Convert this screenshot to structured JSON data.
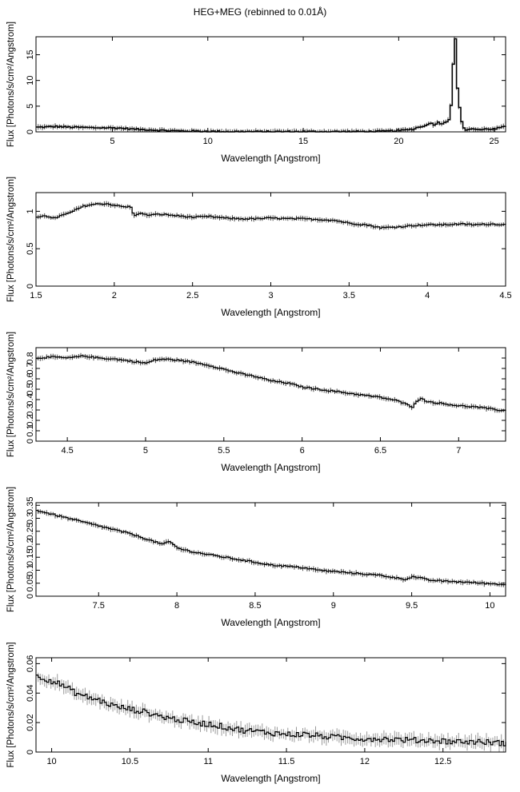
{
  "title": "HEG+MEG (rebinned to 0.01Å)",
  "chart_data": [
    {
      "type": "line",
      "xlabel": "Wavelength [Angstrom]",
      "ylabel": "Flux [Photons/s/cm²/Angstrom]",
      "xlim": [
        1.0,
        25.6
      ],
      "ylim": [
        0,
        18.5
      ],
      "xticks": [
        5,
        10,
        15,
        20,
        25
      ],
      "xtick_labels": [
        "5",
        "10",
        "15",
        "20",
        "25"
      ],
      "yticks": [
        0,
        5,
        10,
        15
      ],
      "ytick_labels": [
        "0",
        "5",
        "10",
        "15"
      ],
      "grid": false,
      "series": [
        {
          "x": [
            1.0,
            1.5,
            2.0,
            2.5,
            3.0,
            3.5,
            4.0,
            4.5,
            5.0,
            5.5,
            6.0,
            6.5,
            7.0,
            7.5,
            8.0,
            9.0,
            10.0,
            11.0,
            12.0,
            13.0,
            14.0,
            15.0,
            16.0,
            17.0,
            18.0,
            19.0,
            19.6,
            20.0,
            20.4,
            20.8,
            21.0,
            21.2,
            21.4,
            21.6,
            21.8,
            22.0,
            22.2,
            22.4,
            22.6,
            22.75,
            22.85,
            22.95,
            23.05,
            23.15,
            23.3,
            23.45,
            23.6,
            23.75,
            24.0,
            24.3,
            24.6,
            25.0,
            25.3,
            25.6
          ],
          "values": [
            0.9,
            0.95,
            1.05,
            0.95,
            0.9,
            0.85,
            0.8,
            0.8,
            0.78,
            0.7,
            0.55,
            0.45,
            0.38,
            0.3,
            0.22,
            0.15,
            0.1,
            0.07,
            0.05,
            0.05,
            0.05,
            0.05,
            0.05,
            0.05,
            0.06,
            0.1,
            0.2,
            0.25,
            0.4,
            0.6,
            1.0,
            0.9,
            1.4,
            1.8,
            1.3,
            1.9,
            1.6,
            1.8,
            2.5,
            7.0,
            18.4,
            18.0,
            6.0,
            4.5,
            0.8,
            0.5,
            0.3,
            0.7,
            0.5,
            0.4,
            0.6,
            0.5,
            0.9,
            1.0
          ]
        }
      ]
    },
    {
      "type": "line",
      "xlabel": "Wavelength [Angstrom]",
      "ylabel": "Flux [Photons/s/cm²/Angstrom]",
      "xlim": [
        1.5,
        4.5
      ],
      "ylim": [
        0,
        1.25
      ],
      "xticks": [
        1.5,
        2,
        2.5,
        3,
        3.5,
        4,
        4.5
      ],
      "xtick_labels": [
        "1.5",
        "2",
        "2.5",
        "3",
        "3.5",
        "4",
        "4.5"
      ],
      "yticks": [
        0,
        0.5,
        1
      ],
      "ytick_labels": [
        "0",
        "0.5",
        "1"
      ],
      "grid": false,
      "series": [
        {
          "x": [
            1.5,
            1.55,
            1.6,
            1.65,
            1.7,
            1.75,
            1.8,
            1.85,
            1.9,
            1.95,
            2.0,
            2.05,
            2.1,
            2.12,
            2.15,
            2.2,
            2.3,
            2.4,
            2.5,
            2.6,
            2.7,
            2.8,
            2.9,
            3.0,
            3.1,
            3.2,
            3.3,
            3.4,
            3.5,
            3.6,
            3.7,
            3.8,
            3.9,
            4.0,
            4.1,
            4.2,
            4.3,
            4.4,
            4.5
          ],
          "values": [
            0.92,
            0.95,
            0.9,
            0.94,
            0.97,
            1.02,
            1.07,
            1.09,
            1.1,
            1.1,
            1.08,
            1.06,
            1.06,
            0.93,
            0.98,
            0.95,
            0.96,
            0.94,
            0.92,
            0.93,
            0.91,
            0.9,
            0.9,
            0.91,
            0.9,
            0.9,
            0.89,
            0.88,
            0.84,
            0.82,
            0.78,
            0.79,
            0.81,
            0.82,
            0.82,
            0.83,
            0.82,
            0.83,
            0.82
          ]
        }
      ]
    },
    {
      "type": "line",
      "xlabel": "Wavelength [Angstrom]",
      "ylabel": "Flux [Photons/s/cm²/Angstrom]",
      "xlim": [
        4.3,
        7.3
      ],
      "ylim": [
        0,
        0.9
      ],
      "xticks": [
        4.5,
        5,
        5.5,
        6,
        6.5,
        7
      ],
      "xtick_labels": [
        "4.5",
        "5",
        "5.5",
        "6",
        "6.5",
        "7"
      ],
      "yticks": [
        0,
        0.1,
        0.2,
        0.3,
        0.4,
        0.5,
        0.6,
        0.7,
        0.8
      ],
      "ytick_labels": [
        "0",
        "0.1",
        "0.2",
        "0.3",
        "0.4",
        "0.5",
        "0.6",
        "0.7",
        "0.8"
      ],
      "grid": false,
      "series": [
        {
          "x": [
            4.3,
            4.4,
            4.5,
            4.6,
            4.7,
            4.8,
            4.9,
            5.0,
            5.05,
            5.1,
            5.2,
            5.3,
            5.4,
            5.5,
            5.6,
            5.7,
            5.8,
            5.9,
            6.0,
            6.1,
            6.2,
            6.3,
            6.4,
            6.5,
            6.6,
            6.65,
            6.7,
            6.72,
            6.75,
            6.8,
            6.9,
            7.0,
            7.1,
            7.2,
            7.3
          ],
          "values": [
            0.8,
            0.81,
            0.8,
            0.82,
            0.8,
            0.79,
            0.77,
            0.75,
            0.78,
            0.79,
            0.78,
            0.76,
            0.73,
            0.69,
            0.65,
            0.62,
            0.58,
            0.56,
            0.52,
            0.5,
            0.48,
            0.46,
            0.44,
            0.42,
            0.39,
            0.36,
            0.33,
            0.38,
            0.41,
            0.38,
            0.36,
            0.34,
            0.33,
            0.31,
            0.29
          ]
        }
      ]
    },
    {
      "type": "line",
      "xlabel": "Wavelength [Angstrom]",
      "ylabel": "Flux [Photons/s/cm²/Angstrom]",
      "xlim": [
        7.1,
        10.1
      ],
      "ylim": [
        0,
        0.36
      ],
      "xticks": [
        7.5,
        8,
        8.5,
        9,
        9.5,
        10
      ],
      "xtick_labels": [
        "7.5",
        "8",
        "8.5",
        "9",
        "9.5",
        "10"
      ],
      "yticks": [
        0,
        0.05,
        0.1,
        0.15,
        0.2,
        0.25,
        0.3,
        0.35
      ],
      "ytick_labels": [
        "0",
        "0.05",
        "0.1",
        "0.15",
        "0.2",
        "0.25",
        "0.3",
        "0.35"
      ],
      "grid": false,
      "series": [
        {
          "x": [
            7.1,
            7.2,
            7.3,
            7.4,
            7.5,
            7.6,
            7.7,
            7.8,
            7.9,
            7.95,
            8.0,
            8.1,
            8.2,
            8.3,
            8.4,
            8.5,
            8.6,
            8.7,
            8.8,
            8.9,
            9.0,
            9.1,
            9.2,
            9.3,
            9.4,
            9.45,
            9.5,
            9.55,
            9.6,
            9.7,
            9.8,
            9.9,
            10.0,
            10.1
          ],
          "values": [
            0.33,
            0.315,
            0.3,
            0.285,
            0.27,
            0.255,
            0.24,
            0.22,
            0.2,
            0.21,
            0.185,
            0.17,
            0.16,
            0.15,
            0.14,
            0.13,
            0.12,
            0.115,
            0.11,
            0.1,
            0.095,
            0.09,
            0.085,
            0.08,
            0.07,
            0.065,
            0.075,
            0.07,
            0.062,
            0.058,
            0.055,
            0.052,
            0.048,
            0.045
          ]
        }
      ]
    },
    {
      "type": "line",
      "xlabel": "Wavelength [Angstrom]",
      "ylabel": "Flux [Photons/s/cm²/Angstrom]",
      "xlim": [
        9.9,
        12.9
      ],
      "ylim": [
        0,
        0.064
      ],
      "xticks": [
        10,
        10.5,
        11,
        11.5,
        12,
        12.5
      ],
      "xtick_labels": [
        "10",
        "10.5",
        "11",
        "11.5",
        "12",
        "12.5"
      ],
      "yticks": [
        0,
        0.02,
        0.04,
        0.06
      ],
      "ytick_labels": [
        "0",
        "0.02",
        "0.04",
        "0.06"
      ],
      "grid": false,
      "series": [
        {
          "x": [
            9.9,
            9.95,
            10.0,
            10.05,
            10.1,
            10.15,
            10.2,
            10.3,
            10.4,
            10.5,
            10.6,
            10.7,
            10.8,
            10.9,
            11.0,
            11.1,
            11.2,
            11.3,
            11.4,
            11.5,
            11.6,
            11.7,
            11.8,
            11.9,
            12.0,
            12.1,
            12.2,
            12.3,
            12.4,
            12.5,
            12.6,
            12.7,
            12.8,
            12.9
          ],
          "values": [
            0.052,
            0.05,
            0.048,
            0.046,
            0.043,
            0.04,
            0.038,
            0.035,
            0.031,
            0.029,
            0.027,
            0.024,
            0.022,
            0.02,
            0.019,
            0.017,
            0.015,
            0.014,
            0.013,
            0.012,
            0.012,
            0.011,
            0.01,
            0.0095,
            0.009,
            0.009,
            0.0085,
            0.008,
            0.008,
            0.0075,
            0.007,
            0.007,
            0.0065,
            0.006
          ]
        }
      ]
    }
  ]
}
